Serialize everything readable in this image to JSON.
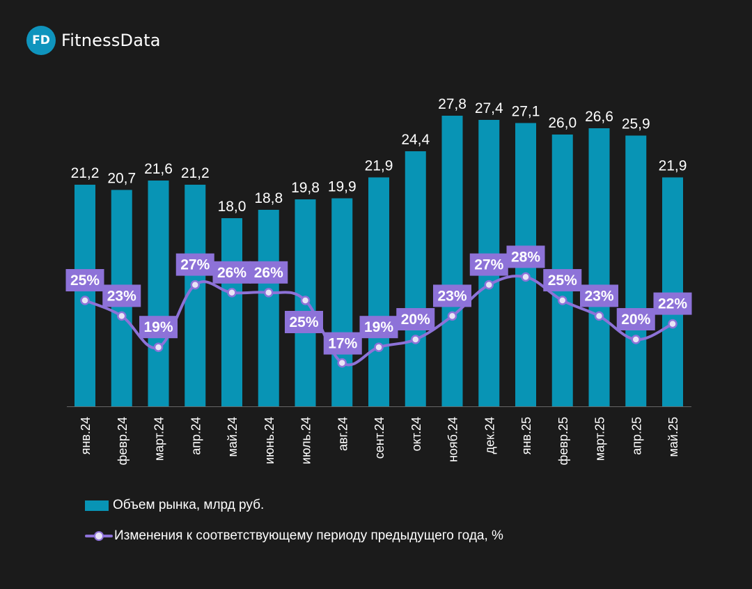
{
  "brand": {
    "badge": "FD",
    "name": "FitnessData",
    "color": "#0f94bd"
  },
  "chart_data": {
    "type": "bar",
    "categories": [
      "янв.24",
      "февр.24",
      "март.24",
      "апр.24",
      "май.24",
      "июнь.24",
      "июль.24",
      "авг.24",
      "сент.24",
      "окт.24",
      "нояб.24",
      "дек.24",
      "янв.25",
      "февр.25",
      "март.25",
      "апр.25",
      "май.25"
    ],
    "series": [
      {
        "name": "Объем рынка, млрд руб.",
        "kind": "bar",
        "color": "#0894b5",
        "values": [
          21.2,
          20.7,
          21.6,
          21.2,
          18.0,
          18.8,
          19.8,
          19.9,
          21.9,
          24.4,
          27.8,
          27.4,
          27.1,
          26.0,
          26.6,
          25.9,
          21.9
        ],
        "labels": [
          "21,2",
          "20,7",
          "21,6",
          "21,2",
          "18,0",
          "18,8",
          "19,8",
          "19,9",
          "21,9",
          "24,4",
          "27,8",
          "27,4",
          "27,1",
          "26,0",
          "26,6",
          "25,9",
          "21,9"
        ]
      },
      {
        "name": "Изменения к соответствующему периоду предыдущего года, %",
        "kind": "line",
        "color": "#8d72d8",
        "values": [
          25,
          23,
          19,
          27,
          26,
          26,
          25,
          17,
          19,
          20,
          23,
          27,
          28,
          25,
          23,
          20,
          22
        ],
        "labels": [
          "25%",
          "23%",
          "19%",
          "27%",
          "26%",
          "26%",
          "25%",
          "17%",
          "19%",
          "20%",
          "23%",
          "27%",
          "28%",
          "25%",
          "23%",
          "20%",
          "22%"
        ]
      }
    ],
    "ylim": [
      0,
      30
    ],
    "grid": false,
    "legend_position": "bottom-left"
  }
}
